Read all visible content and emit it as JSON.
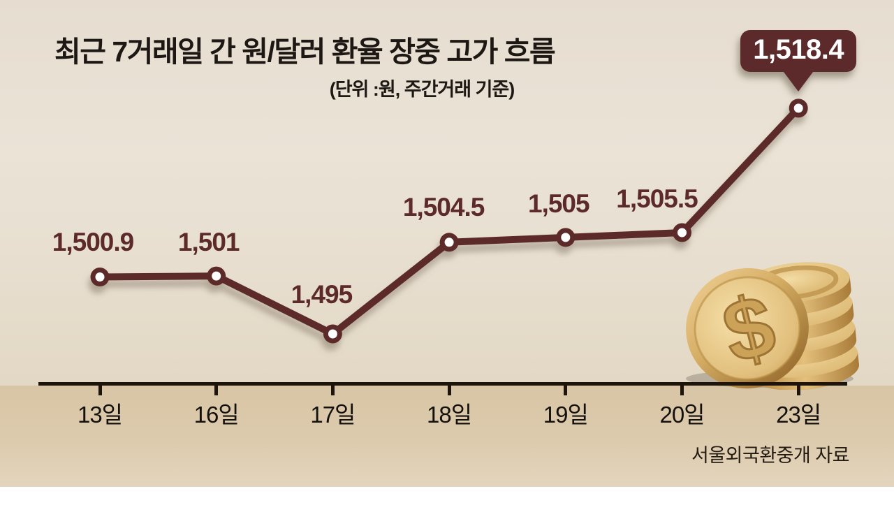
{
  "header": {
    "title": "최근 7거래일 간 원/달러 환율 장중 고가 흐름",
    "unit_note": "(단위 :원, 주간거래 기준)"
  },
  "chart_data": {
    "type": "line",
    "categories": [
      "13일",
      "16일",
      "17일",
      "18일",
      "19일",
      "20일",
      "23일"
    ],
    "values": [
      1500.9,
      1501,
      1495,
      1504.5,
      1505,
      1505.5,
      1518.4
    ],
    "point_labels": [
      "1,500.9",
      "1,501",
      "1,495",
      "1,504.5",
      "1,505",
      "1,505.5",
      "1,518.4"
    ],
    "highlight": {
      "index": 6,
      "label": "1,518.4"
    },
    "title": "최근 7거래일 간 원/달러 환율 장중 고가 흐름",
    "xlabel": "",
    "ylabel": "원",
    "ylim": [
      1490,
      1522
    ],
    "grid": false,
    "legend": null,
    "line_color": "#5d2a2b",
    "marker_center_color": "#ffffff"
  },
  "source": "서울외국환중개 자료",
  "icons": {
    "coin_stack": "dollar-coin-stack-illustration",
    "dollar_sign": "$"
  },
  "colors": {
    "accent_maroon": "#5d2a2b",
    "background_upper": "#e7decf",
    "background_band": "#dbc8a9",
    "axis": "#1d140b",
    "coin_gold": "#ddb873"
  }
}
